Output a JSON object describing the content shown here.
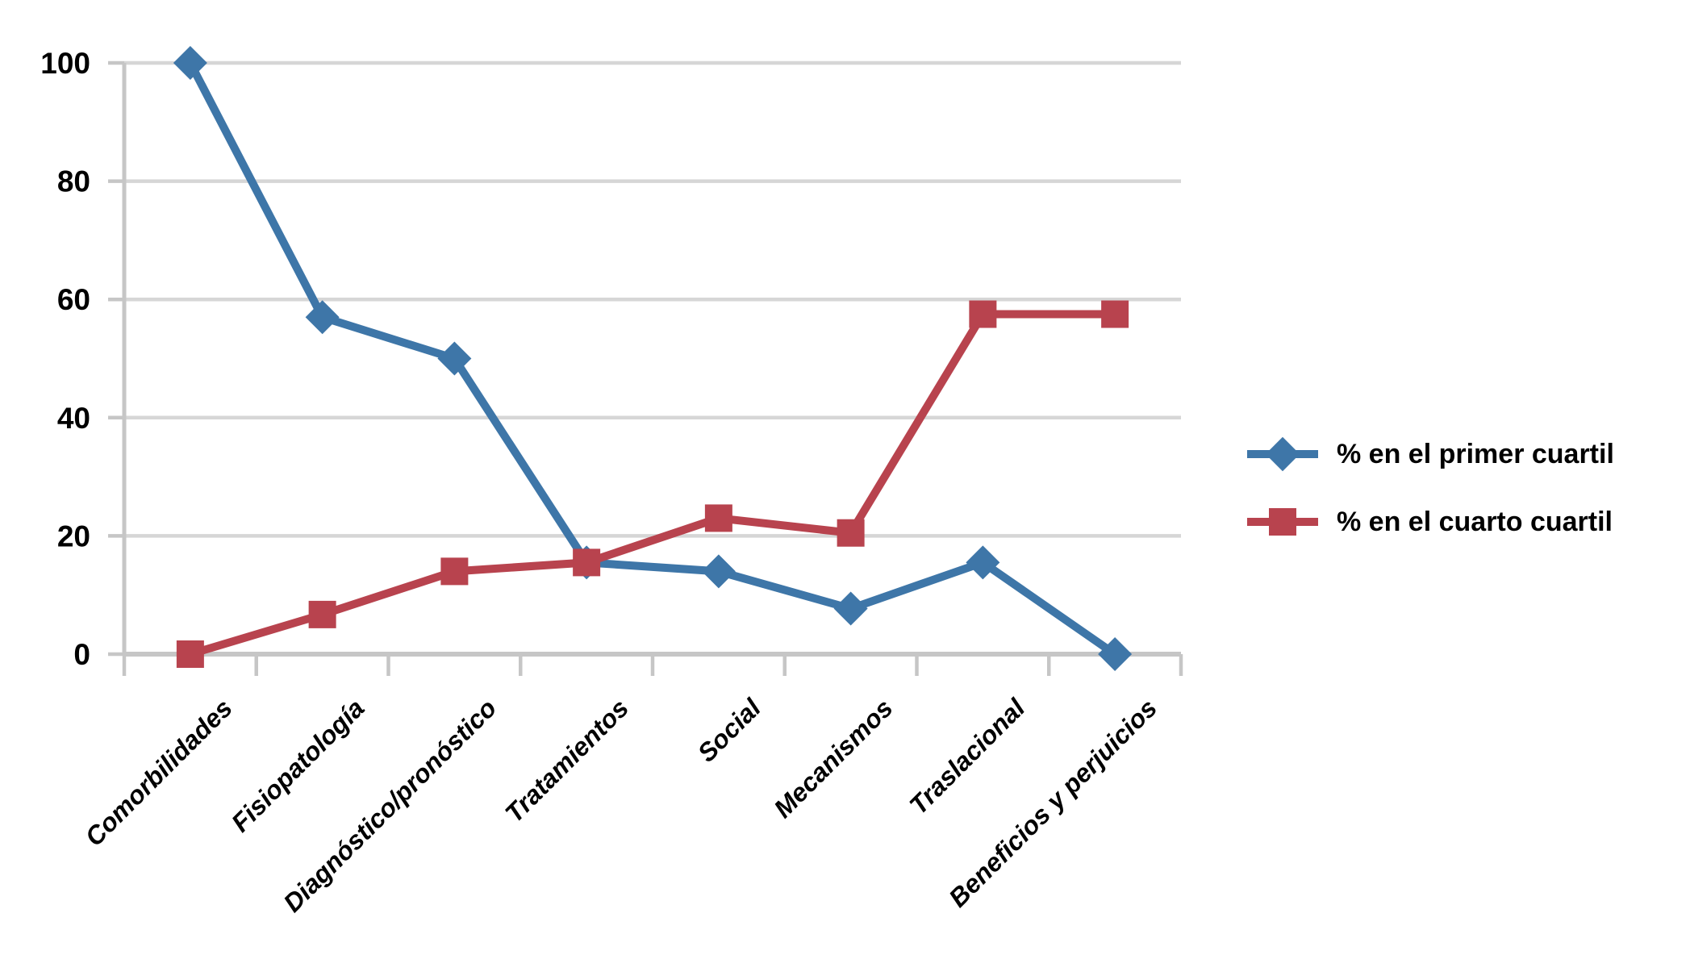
{
  "chart_data": {
    "type": "line",
    "title": "",
    "xlabel": "",
    "ylabel": "",
    "categories": [
      "Comorbilidades",
      "Fisiopatología",
      "Diagnóstico/pronóstico",
      "Tratamientos",
      "Social",
      "Mecanismos",
      "Traslacional",
      "Beneficios y perjuicios"
    ],
    "series": [
      {
        "name": "% en el primer cuartil",
        "marker": "diamond",
        "color": "#3e76a8",
        "values": [
          100,
          57,
          50,
          15.5,
          14,
          7.7,
          15.5,
          0
        ]
      },
      {
        "name": "% en el cuarto cuartil",
        "marker": "square",
        "color": "#b8434e",
        "values": [
          0,
          6.7,
          14,
          15.5,
          23,
          20.5,
          57.5,
          57.5
        ]
      }
    ],
    "ylim": [
      0,
      100
    ],
    "y_ticks": [
      0,
      20,
      40,
      60,
      80,
      100
    ],
    "grid": true,
    "legend_position": "right"
  },
  "colors": {
    "series_primer": "#3e76a8",
    "series_cuarto": "#b8434e",
    "gridline": "#d6d6d6",
    "axis": "#c6c6c6",
    "text": "#000000",
    "background": "#ffffff"
  }
}
